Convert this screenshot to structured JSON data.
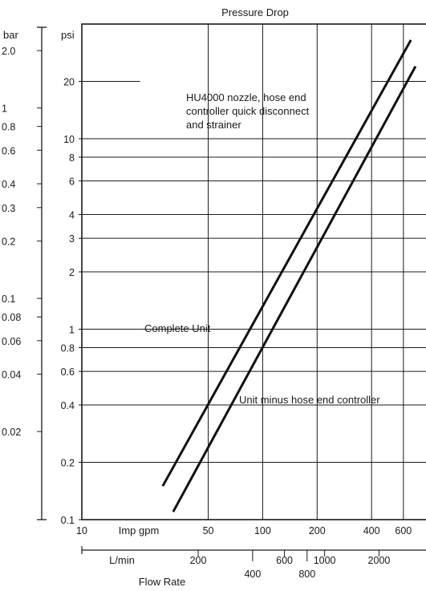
{
  "chart_data": {
    "type": "line",
    "title": "Pressure Drop",
    "xlabel": "Flow Rate",
    "x_scale": "log",
    "y_scale": "log",
    "x_units": "Imp gpm",
    "y_units": "psi",
    "xlim": [
      10,
      800
    ],
    "ylim": [
      0.1,
      40
    ],
    "grid": true,
    "x_ticks_primary": {
      "unit": "Imp gpm",
      "ticks": [
        10,
        50,
        100,
        200,
        400,
        600
      ]
    },
    "x_ticks_secondary": {
      "unit": "L/min",
      "ticks": [
        200,
        400,
        600,
        800,
        1000,
        2000
      ]
    },
    "y_ticks_primary": {
      "unit": "psi",
      "ticks": [
        0.1,
        0.2,
        0.4,
        0.6,
        0.8,
        1,
        2,
        3,
        4,
        6,
        8,
        10,
        20
      ]
    },
    "y_ticks_secondary": {
      "unit": "bar",
      "ticks": [
        0.02,
        0.04,
        0.06,
        0.08,
        0.1,
        0.2,
        0.3,
        0.4,
        0.6,
        0.8,
        1,
        2.0
      ]
    },
    "series": [
      {
        "name": "Complete Unit",
        "points": [
          [
            28,
            0.15
          ],
          [
            660,
            33
          ]
        ]
      },
      {
        "name": "Unit minus hose end controller",
        "points": [
          [
            32,
            0.11
          ],
          [
            700,
            24
          ]
        ]
      }
    ],
    "annotations": [
      {
        "text": "HU4000 nozzle, hose end controller quick disconnect and strainer"
      }
    ],
    "labels": {
      "x_primary_unit": "Imp gpm",
      "x_secondary_unit": "L/min",
      "y_primary_unit": "psi",
      "y_secondary_unit": "bar",
      "x_primary_ticks": [
        "10",
        "50",
        "100",
        "200",
        "400",
        "600"
      ],
      "x_secondary_ticks": [
        "200",
        "400",
        "600",
        "800",
        "1000",
        "2000"
      ],
      "y_primary_ticks": [
        "0.1",
        "0.2",
        "0.4",
        "0.6",
        "0.8",
        "1",
        "2",
        "3",
        "4",
        "6",
        "8",
        "10",
        "20"
      ],
      "y_secondary_ticks": [
        "0.02",
        "0.04",
        "0.06",
        "0.08",
        "0.1",
        "0.2",
        "0.3",
        "0.4",
        "0.6",
        "0.8",
        "1",
        "2.0"
      ],
      "annotation_lines": [
        "HU4000 nozzle, hose end",
        "controller quick disconnect",
        "and strainer"
      ]
    }
  }
}
